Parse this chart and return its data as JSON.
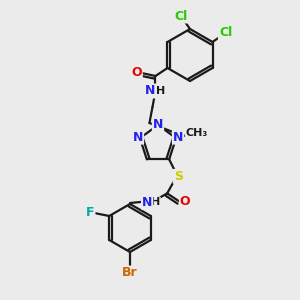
{
  "bg_color": "#ebebeb",
  "bond_color": "#1a1a1a",
  "bond_width": 1.6,
  "atom_colors": {
    "Cl": "#22cc00",
    "N": "#2222ee",
    "O": "#ee0000",
    "S": "#cccc00",
    "F": "#00aaaa",
    "Br": "#cc6600",
    "C": "#1a1a1a",
    "H": "#1a1a1a"
  },
  "atom_fontsizes": {
    "Cl": 9,
    "N": 9,
    "O": 9,
    "S": 9,
    "F": 9,
    "Br": 9,
    "small": 8
  }
}
